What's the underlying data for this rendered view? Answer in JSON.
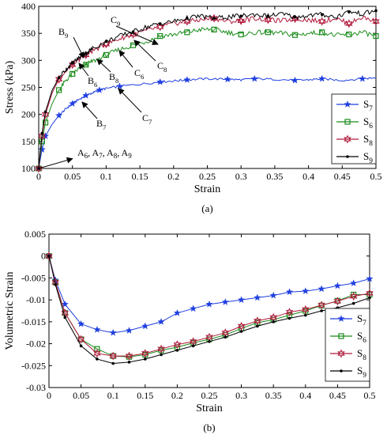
{
  "chart_data": [
    {
      "panel_label": "(a)",
      "type": "line",
      "xlabel": "Strain",
      "ylabel": "Stress (kPa)",
      "xlim": [
        0,
        0.5
      ],
      "ylim": [
        100,
        400
      ],
      "xticks": [
        "0",
        "0.05",
        "0.1",
        "0.15",
        "0.2",
        "0.25",
        "0.3",
        "0.35",
        "0.4",
        "0.45",
        "0.5"
      ],
      "yticks": [
        "100",
        "150",
        "200",
        "250",
        "300",
        "350",
        "400"
      ],
      "legend_position": "bottom-right",
      "series": [
        {
          "name": "S",
          "sub": "7",
          "color": "#1f3fe0",
          "marker": "star",
          "x": [
            0,
            0.005,
            0.01,
            0.02,
            0.03,
            0.04,
            0.05,
            0.06,
            0.07,
            0.08,
            0.09,
            0.1,
            0.12,
            0.15,
            0.18,
            0.2,
            0.22,
            0.25,
            0.28,
            0.3,
            0.32,
            0.35,
            0.38,
            0.4,
            0.42,
            0.45,
            0.48,
            0.5
          ],
          "y": [
            100,
            135,
            160,
            182,
            198,
            210,
            220,
            228,
            235,
            240,
            245,
            248,
            252,
            256,
            260,
            262,
            264,
            266,
            265,
            264,
            266,
            265,
            263,
            264,
            266,
            263,
            266,
            268
          ]
        },
        {
          "name": "S",
          "sub": "6",
          "color": "#1a8c1a",
          "marker": "square",
          "x": [
            0,
            0.005,
            0.01,
            0.02,
            0.03,
            0.04,
            0.05,
            0.06,
            0.07,
            0.08,
            0.1,
            0.12,
            0.14,
            0.16,
            0.18,
            0.2,
            0.22,
            0.24,
            0.26,
            0.28,
            0.3,
            0.32,
            0.34,
            0.36,
            0.38,
            0.4,
            0.42,
            0.44,
            0.46,
            0.48,
            0.5
          ],
          "y": [
            100,
            150,
            185,
            220,
            245,
            262,
            275,
            285,
            292,
            298,
            310,
            320,
            328,
            335,
            345,
            348,
            352,
            357,
            357,
            352,
            348,
            351,
            352,
            350,
            347,
            350,
            352,
            346,
            348,
            352,
            345
          ]
        },
        {
          "name": "S",
          "sub": "8",
          "color": "#b01a3c",
          "marker": "hexstar",
          "x": [
            0,
            0.005,
            0.01,
            0.02,
            0.03,
            0.04,
            0.05,
            0.06,
            0.07,
            0.08,
            0.1,
            0.12,
            0.14,
            0.16,
            0.18,
            0.2,
            0.22,
            0.24,
            0.26,
            0.28,
            0.3,
            0.32,
            0.34,
            0.36,
            0.38,
            0.4,
            0.42,
            0.44,
            0.46,
            0.48,
            0.5
          ],
          "y": [
            100,
            160,
            200,
            240,
            265,
            280,
            292,
            302,
            310,
            318,
            330,
            340,
            348,
            355,
            362,
            368,
            372,
            375,
            378,
            372,
            373,
            378,
            375,
            373,
            377,
            375,
            372,
            378,
            368,
            380,
            372
          ]
        },
        {
          "name": "S",
          "sub": "9",
          "color": "#000000",
          "marker": "dot",
          "x": [
            0,
            0.005,
            0.01,
            0.02,
            0.03,
            0.04,
            0.05,
            0.06,
            0.07,
            0.08,
            0.1,
            0.12,
            0.14,
            0.16,
            0.18,
            0.2,
            0.22,
            0.24,
            0.26,
            0.28,
            0.3,
            0.32,
            0.34,
            0.36,
            0.38,
            0.4,
            0.42,
            0.44,
            0.46,
            0.48,
            0.5
          ],
          "y": [
            100,
            165,
            205,
            245,
            268,
            283,
            295,
            305,
            313,
            322,
            335,
            345,
            353,
            362,
            368,
            372,
            378,
            382,
            378,
            380,
            382,
            385,
            382,
            386,
            380,
            383,
            385,
            380,
            390,
            386,
            392
          ]
        }
      ],
      "annotations": [
        {
          "text": "A",
          "sub": "6",
          "rest": ", A",
          "sub2": "7",
          "rest2": ", A",
          "sub3": "8",
          "rest3": ", A",
          "sub4": "9"
        },
        {
          "text": "B",
          "sub": "9"
        },
        {
          "text": "B",
          "sub": "6"
        },
        {
          "text": "B",
          "sub": "8"
        },
        {
          "text": "B",
          "sub": "7"
        },
        {
          "text": "C",
          "sub": "9"
        },
        {
          "text": "C",
          "sub": "6"
        },
        {
          "text": "C",
          "sub": "8"
        },
        {
          "text": "C",
          "sub": "7"
        }
      ]
    },
    {
      "panel_label": "(b)",
      "type": "line",
      "xlabel": "Strain",
      "ylabel": "Volumetric Strain",
      "xlim": [
        0,
        0.5
      ],
      "ylim": [
        -0.03,
        0.005
      ],
      "xticks": [
        "0",
        "0.05",
        "0.1",
        "0.15",
        "0.2",
        "0.25",
        "0.3",
        "0.35",
        "0.4",
        "0.45",
        "0.5"
      ],
      "yticks": [
        "-0.03",
        "-0.025",
        "-0.02",
        "-0.015",
        "-0.01",
        "-0.005",
        "0",
        "0.005"
      ],
      "legend_position": "bottom-right",
      "series": [
        {
          "name": "S",
          "sub": "7",
          "color": "#1f3fe0",
          "marker": "star",
          "x": [
            0,
            0.01,
            0.025,
            0.05,
            0.075,
            0.1,
            0.125,
            0.15,
            0.175,
            0.2,
            0.225,
            0.25,
            0.275,
            0.3,
            0.325,
            0.35,
            0.375,
            0.4,
            0.425,
            0.45,
            0.475,
            0.5
          ],
          "y": [
            0,
            -0.0055,
            -0.011,
            -0.0155,
            -0.0168,
            -0.0175,
            -0.017,
            -0.016,
            -0.015,
            -0.013,
            -0.012,
            -0.011,
            -0.0105,
            -0.01,
            -0.0095,
            -0.009,
            -0.0082,
            -0.008,
            -0.0075,
            -0.0068,
            -0.0062,
            -0.0052
          ]
        },
        {
          "name": "S",
          "sub": "6",
          "color": "#1a8c1a",
          "marker": "square",
          "x": [
            0,
            0.01,
            0.025,
            0.05,
            0.075,
            0.1,
            0.125,
            0.15,
            0.175,
            0.2,
            0.225,
            0.25,
            0.275,
            0.3,
            0.325,
            0.35,
            0.375,
            0.4,
            0.425,
            0.45,
            0.475,
            0.5
          ],
          "y": [
            0,
            -0.006,
            -0.013,
            -0.019,
            -0.0212,
            -0.0228,
            -0.023,
            -0.0225,
            -0.0215,
            -0.0208,
            -0.0198,
            -0.019,
            -0.018,
            -0.0165,
            -0.0152,
            -0.0145,
            -0.0135,
            -0.0125,
            -0.0113,
            -0.0102,
            -0.0088,
            -0.0088
          ]
        },
        {
          "name": "S",
          "sub": "8",
          "color": "#b01a3c",
          "marker": "hexstar",
          "x": [
            0,
            0.01,
            0.025,
            0.05,
            0.075,
            0.1,
            0.125,
            0.15,
            0.175,
            0.2,
            0.225,
            0.25,
            0.275,
            0.3,
            0.325,
            0.35,
            0.375,
            0.4,
            0.425,
            0.45,
            0.475,
            0.5
          ],
          "y": [
            0,
            -0.006,
            -0.013,
            -0.019,
            -0.0222,
            -0.0228,
            -0.0228,
            -0.0222,
            -0.0212,
            -0.0202,
            -0.0195,
            -0.0185,
            -0.0175,
            -0.016,
            -0.0148,
            -0.014,
            -0.0128,
            -0.0122,
            -0.0112,
            -0.0103,
            -0.0092,
            -0.0085
          ]
        },
        {
          "name": "S",
          "sub": "9",
          "color": "#000000",
          "marker": "dot",
          "x": [
            0,
            0.01,
            0.025,
            0.05,
            0.075,
            0.1,
            0.125,
            0.15,
            0.175,
            0.2,
            0.225,
            0.25,
            0.275,
            0.3,
            0.325,
            0.35,
            0.375,
            0.4,
            0.425,
            0.45,
            0.475,
            0.5
          ],
          "y": [
            0,
            -0.0065,
            -0.014,
            -0.0205,
            -0.0235,
            -0.0245,
            -0.0242,
            -0.0235,
            -0.0225,
            -0.0215,
            -0.0205,
            -0.0195,
            -0.0185,
            -0.0172,
            -0.016,
            -0.015,
            -0.0142,
            -0.0135,
            -0.0125,
            -0.0118,
            -0.0108,
            -0.0095
          ]
        }
      ]
    }
  ]
}
